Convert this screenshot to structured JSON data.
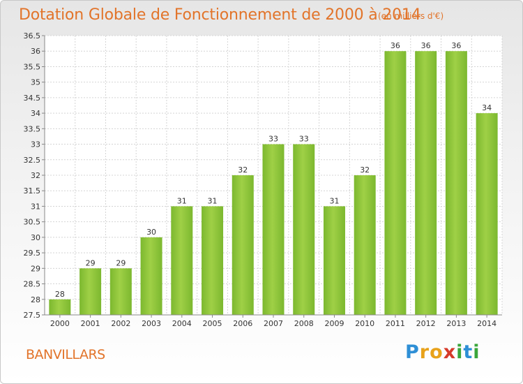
{
  "chart_data": {
    "type": "bar",
    "title": "Dotation Globale de Fonctionnement de 2000 à 2014",
    "subtitle": "(en milliers d'€)",
    "categories": [
      "2000",
      "2001",
      "2002",
      "2003",
      "2004",
      "2005",
      "2006",
      "2007",
      "2008",
      "2009",
      "2010",
      "2011",
      "2012",
      "2013",
      "2014"
    ],
    "values": [
      28,
      29,
      29,
      30,
      31,
      31,
      32,
      33,
      33,
      31,
      32,
      36,
      36,
      36,
      34
    ],
    "ylim": [
      27.5,
      36.5
    ],
    "yticks": [
      "27.5",
      "28",
      "28.5",
      "29",
      "29.5",
      "30",
      "30.5",
      "31",
      "31.5",
      "32",
      "32.5",
      "33",
      "33.5",
      "34",
      "34.5",
      "35",
      "35.5",
      "36",
      "36.5"
    ],
    "grid": true,
    "bar_color": "#7cb82f",
    "bar_color_light": "#9fd046"
  },
  "place_name": "BANVILLARS",
  "logo": {
    "letters": [
      "P",
      "r",
      "o",
      "x",
      "i",
      "t",
      "i"
    ],
    "colors": [
      "#2e8fd6",
      "#e8a21a",
      "#e8a21a",
      "#d63a2a",
      "#3aa63a",
      "#2e8fd6",
      "#3aa63a"
    ]
  }
}
